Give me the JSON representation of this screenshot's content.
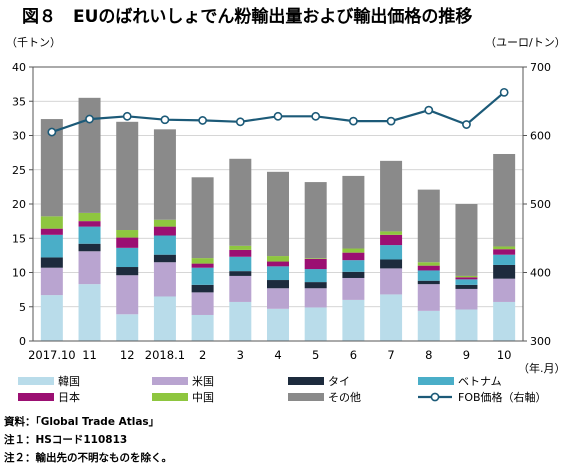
{
  "title": "図８　EUのばれいしょでん粉輸出量および輸出価格の推移",
  "chart_data": {
    "type": "bar",
    "stacked": true,
    "categories": [
      "2017.10",
      "11",
      "12",
      "2018.1",
      "2",
      "3",
      "4",
      "5",
      "6",
      "7",
      "8",
      "9",
      "10"
    ],
    "xlabel": "（年.月）",
    "y_left_label": "（千トン）",
    "y_right_label": "（ユーロ/トン）",
    "ylim_left": [
      0,
      40
    ],
    "ylim_right": [
      300,
      700
    ],
    "yticks_left": [
      "0",
      "5",
      "10",
      "15",
      "20",
      "25",
      "30",
      "35",
      "40"
    ],
    "yticks_right": [
      "300",
      "400",
      "500",
      "600",
      "700"
    ],
    "grid": true,
    "legend_position": "bottom",
    "series": [
      {
        "name": "韓国",
        "color": "#b9dcea",
        "values": [
          6.7,
          8.3,
          3.9,
          6.5,
          3.8,
          5.7,
          4.7,
          4.9,
          6.0,
          6.8,
          4.4,
          4.6,
          5.7
        ]
      },
      {
        "name": "米国",
        "color": "#b9a4d0",
        "values": [
          4.0,
          4.8,
          5.7,
          5.0,
          3.3,
          3.8,
          3.0,
          2.8,
          3.2,
          3.8,
          3.9,
          3.0,
          3.4
        ]
      },
      {
        "name": "タイ",
        "color": "#1d2b3d",
        "values": [
          1.5,
          1.1,
          1.2,
          1.1,
          1.1,
          0.7,
          1.2,
          0.9,
          0.9,
          1.3,
          0.5,
          0.6,
          2.0
        ]
      },
      {
        "name": "ベトナム",
        "color": "#4aaec8",
        "values": [
          3.3,
          2.5,
          2.8,
          2.8,
          2.5,
          2.1,
          2.0,
          1.9,
          1.7,
          2.1,
          1.5,
          0.8,
          1.5
        ]
      },
      {
        "name": "日本",
        "color": "#9b0f72",
        "values": [
          0.9,
          0.8,
          1.5,
          1.3,
          0.6,
          1.0,
          0.7,
          1.5,
          1.1,
          1.5,
          0.7,
          0.3,
          0.8
        ]
      },
      {
        "name": "中国",
        "color": "#8ec63f",
        "values": [
          1.8,
          1.2,
          1.1,
          1.0,
          0.8,
          0.6,
          0.8,
          0.1,
          0.6,
          0.5,
          0.5,
          0.2,
          0.4
        ]
      },
      {
        "name": "その他",
        "color": "#8a8a8a",
        "values": [
          14.2,
          16.8,
          15.8,
          13.2,
          11.8,
          12.7,
          12.3,
          11.1,
          10.6,
          10.3,
          10.6,
          10.5,
          13.5
        ]
      }
    ],
    "line": {
      "name": "FOB価格（右軸）",
      "color": "#1c5a78",
      "values": [
        605,
        624,
        628,
        623,
        622,
        620,
        628,
        628,
        621,
        621,
        637,
        616,
        663
      ]
    }
  },
  "notes": [
    "資料：「Global Trade Atlas」",
    "注１：HSコード110813",
    "注２：輸出先の不明なものを除く。"
  ]
}
